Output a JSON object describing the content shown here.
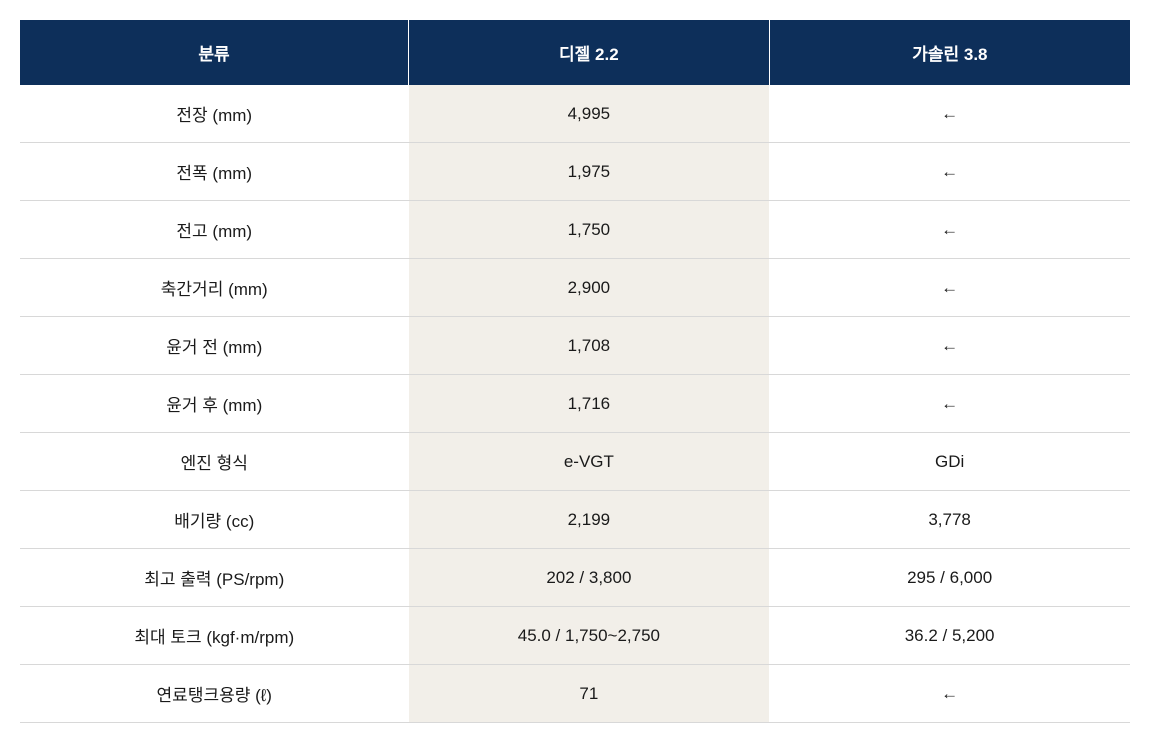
{
  "table": {
    "type": "table",
    "header_bg_color": "#0d2f5a",
    "header_text_color": "#ffffff",
    "alt_column_bg": "#f2efe9",
    "row_border_color": "#d8d8d8",
    "header_fontsize": 17,
    "body_fontsize": 17,
    "columns": [
      {
        "label": "분류",
        "width": "35%"
      },
      {
        "label": "디젤 2.2",
        "width": "32.5%"
      },
      {
        "label": "가솔린 3.8",
        "width": "32.5%"
      }
    ],
    "rows": [
      {
        "label": "전장 (mm)",
        "diesel": "4,995",
        "gasoline": "←"
      },
      {
        "label": "전폭 (mm)",
        "diesel": "1,975",
        "gasoline": "←"
      },
      {
        "label": "전고 (mm)",
        "diesel": "1,750",
        "gasoline": "←"
      },
      {
        "label": "축간거리 (mm)",
        "diesel": "2,900",
        "gasoline": "←"
      },
      {
        "label": "윤거 전 (mm)",
        "diesel": "1,708",
        "gasoline": "←"
      },
      {
        "label": "윤거 후 (mm)",
        "diesel": "1,716",
        "gasoline": "←"
      },
      {
        "label": "엔진 형식",
        "diesel": "e-VGT",
        "gasoline": "GDi"
      },
      {
        "label": "배기량 (cc)",
        "diesel": "2,199",
        "gasoline": "3,778"
      },
      {
        "label": "최고 출력 (PS/rpm)",
        "diesel": "202 / 3,800",
        "gasoline": "295 / 6,000"
      },
      {
        "label": "최대 토크 (kgf·m/rpm)",
        "diesel": "45.0 / 1,750~2,750",
        "gasoline": "36.2 / 5,200"
      },
      {
        "label": "연료탱크용량 (ℓ)",
        "diesel": "71",
        "gasoline": "←"
      }
    ]
  }
}
